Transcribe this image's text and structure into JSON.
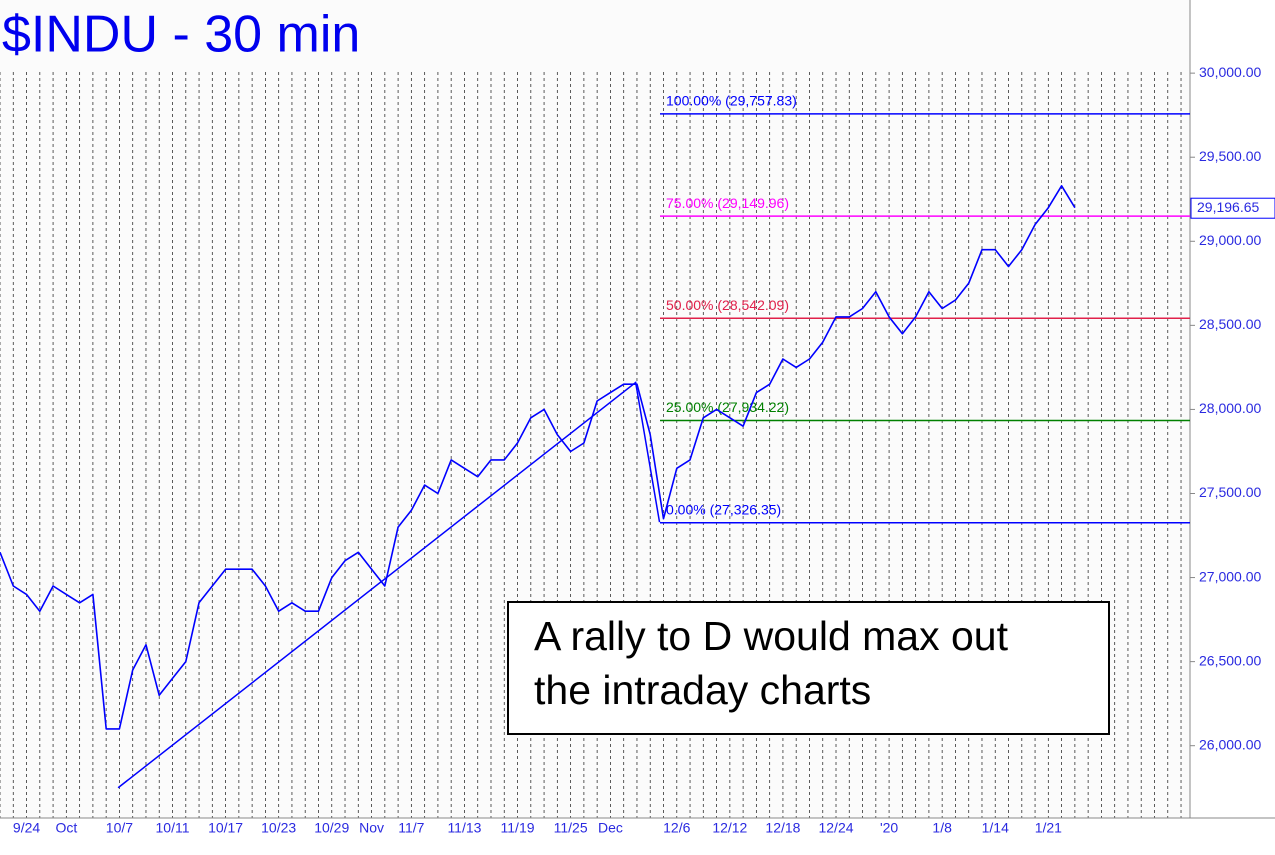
{
  "chart_data": {
    "type": "line",
    "title": "$INDU - 30 min",
    "categories": [
      null,
      null,
      "9/24",
      null,
      null,
      "Oct",
      null,
      null,
      null,
      "10/7",
      null,
      null,
      null,
      "10/11",
      null,
      null,
      null,
      "10/17",
      null,
      null,
      null,
      "10/23",
      null,
      null,
      null,
      "10/29",
      null,
      null,
      "Nov",
      null,
      null,
      "11/7",
      null,
      null,
      null,
      "11/13",
      null,
      null,
      null,
      "11/19",
      null,
      null,
      null,
      "11/25",
      null,
      null,
      "Dec",
      null,
      null,
      null,
      null,
      "12/6",
      null,
      null,
      null,
      "12/12",
      null,
      null,
      null,
      "12/18",
      null,
      null,
      null,
      "12/24",
      null,
      null,
      null,
      "'20",
      null,
      null,
      null,
      "1/8",
      null,
      null,
      null,
      "1/14",
      null,
      null,
      null,
      "1/21",
      null,
      null,
      null,
      null,
      null,
      null,
      null,
      null,
      null,
      null
    ],
    "series": [
      {
        "name": "$INDU",
        "color": "#0000ff",
        "values": [
          27150,
          26950,
          26900,
          26800,
          26950,
          26900,
          26850,
          26900,
          26100,
          26100,
          26450,
          26600,
          26300,
          26400,
          26500,
          26850,
          26950,
          27050,
          27050,
          27050,
          26950,
          26800,
          26850,
          26800,
          26800,
          27000,
          27100,
          27150,
          27050,
          26950,
          27300,
          27400,
          27550,
          27500,
          27700,
          27650,
          27600,
          27700,
          27700,
          27800,
          27950,
          28000,
          27850,
          27750,
          27800,
          28050,
          28100,
          28150,
          28150,
          27850,
          27350,
          27650,
          27700,
          27950,
          28000,
          27950,
          27900,
          28100,
          28150,
          28300,
          28250,
          28300,
          28400,
          28550,
          28550,
          28600,
          28700,
          28550,
          28450,
          28550,
          28700,
          28600,
          28650,
          28750,
          28950,
          28950,
          28850,
          28950,
          29100,
          29200,
          29330,
          29200,
          null,
          null,
          null,
          null,
          null,
          null,
          null,
          null
        ]
      }
    ],
    "ylim": [
      25570,
      30435
    ],
    "yticks": [
      {
        "value": 26000,
        "label": "26,000.00"
      },
      {
        "value": 26500,
        "label": "26,500.00"
      },
      {
        "value": 27000,
        "label": "27,000.00"
      },
      {
        "value": 27500,
        "label": "27,500.00"
      },
      {
        "value": 28000,
        "label": "28,000.00"
      },
      {
        "value": 28500,
        "label": "28,500.00"
      },
      {
        "value": 29000,
        "label": "29,000.00"
      },
      {
        "value": 29500,
        "label": "29,500.00"
      },
      {
        "value": 30000,
        "label": "30,000.00"
      }
    ],
    "grid": true,
    "last_price": {
      "value": 29196.65,
      "label": "29,196.65"
    },
    "fib_levels": [
      {
        "value": 29757.83,
        "label": "100.00% (29,757.83)",
        "color": "#0000ff"
      },
      {
        "value": 29149.96,
        "label": "75.00% (29,149.96)",
        "color": "#ff00ff"
      },
      {
        "value": 28542.09,
        "label": "50.00% (28,542.09)",
        "color": "#e0204a"
      },
      {
        "value": 27934.22,
        "label": "25.00% (27,934.22)",
        "color": "#008000"
      },
      {
        "value": 27326.35,
        "label": "0.00% (27,326.35)",
        "color": "#0000ff"
      }
    ],
    "trendline": {
      "color": "#0000ff",
      "x": [
        8.9,
        47.9,
        49.7
      ],
      "y": [
        25750,
        28160,
        27330
      ]
    },
    "annotation": {
      "lines": [
        "A rally to D would max out",
        "the intraday charts"
      ]
    }
  }
}
